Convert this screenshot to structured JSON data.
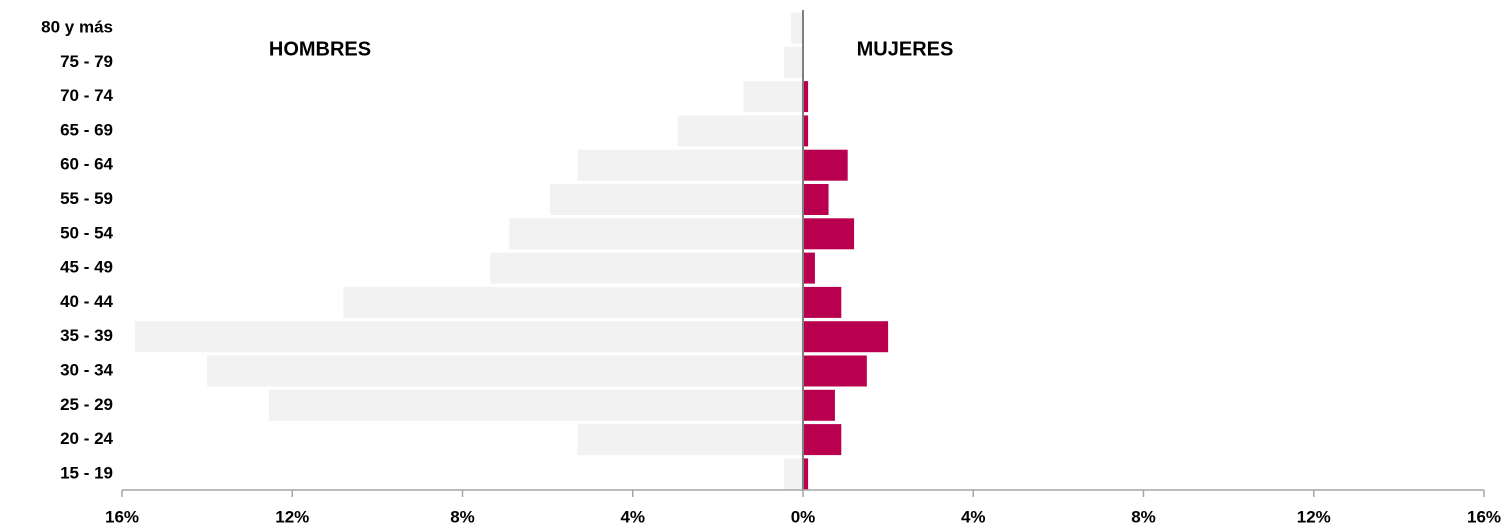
{
  "chart_data": {
    "type": "pyramid",
    "categories": [
      "80 y más",
      "75 - 79",
      "70 - 74",
      "65 - 69",
      "60 - 64",
      "55 - 59",
      "50 - 54",
      "45 - 49",
      "40 - 44",
      "35 - 39",
      "30 - 34",
      "25 - 29",
      "20 - 24",
      "15 - 19"
    ],
    "series": [
      {
        "name": "HOMBRES",
        "color": "#f2f2f2",
        "values": [
          -0.28,
          -0.45,
          -1.4,
          -2.95,
          -5.3,
          -5.95,
          -6.9,
          -7.35,
          -10.8,
          -15.7,
          -14.0,
          -12.55,
          -5.3,
          -0.45
        ]
      },
      {
        "name": "MUJERES",
        "color": "#b8004f",
        "values": [
          0,
          0,
          0.12,
          0.12,
          1.05,
          0.6,
          1.2,
          0.28,
          0.9,
          2.0,
          1.5,
          0.75,
          0.9,
          0.12
        ]
      }
    ],
    "xlim": [
      -16,
      16
    ],
    "xticks": [
      {
        "value": -16,
        "label": "16%"
      },
      {
        "value": -12,
        "label": "12%"
      },
      {
        "value": -8,
        "label": "8%"
      },
      {
        "value": -4,
        "label": "4%"
      },
      {
        "value": 0,
        "label": "0%"
      },
      {
        "value": 4,
        "label": "4%"
      },
      {
        "value": 8,
        "label": "8%"
      },
      {
        "value": 12,
        "label": "12%"
      },
      {
        "value": 16,
        "label": "16%"
      }
    ]
  }
}
